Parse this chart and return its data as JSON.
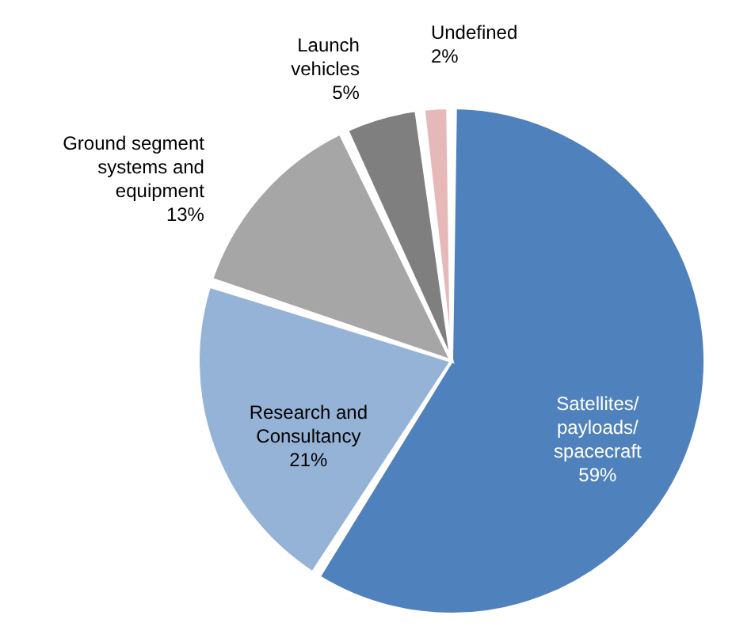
{
  "chart_data": {
    "type": "pie",
    "categories": [
      "Satellites/ payloads/ spacecraft",
      "Research and Consultancy",
      "Ground segment systems and equipment",
      "Launch vehicles",
      "Undefined"
    ],
    "values": [
      59,
      21,
      13,
      5,
      2
    ],
    "value_labels": [
      "59%",
      "21%",
      "13%",
      "5%",
      "2%"
    ],
    "colors": [
      "#4f81bd",
      "#95b3d7",
      "#a6a6a6",
      "#7f7f7f",
      "#e6b9b8"
    ]
  }
}
